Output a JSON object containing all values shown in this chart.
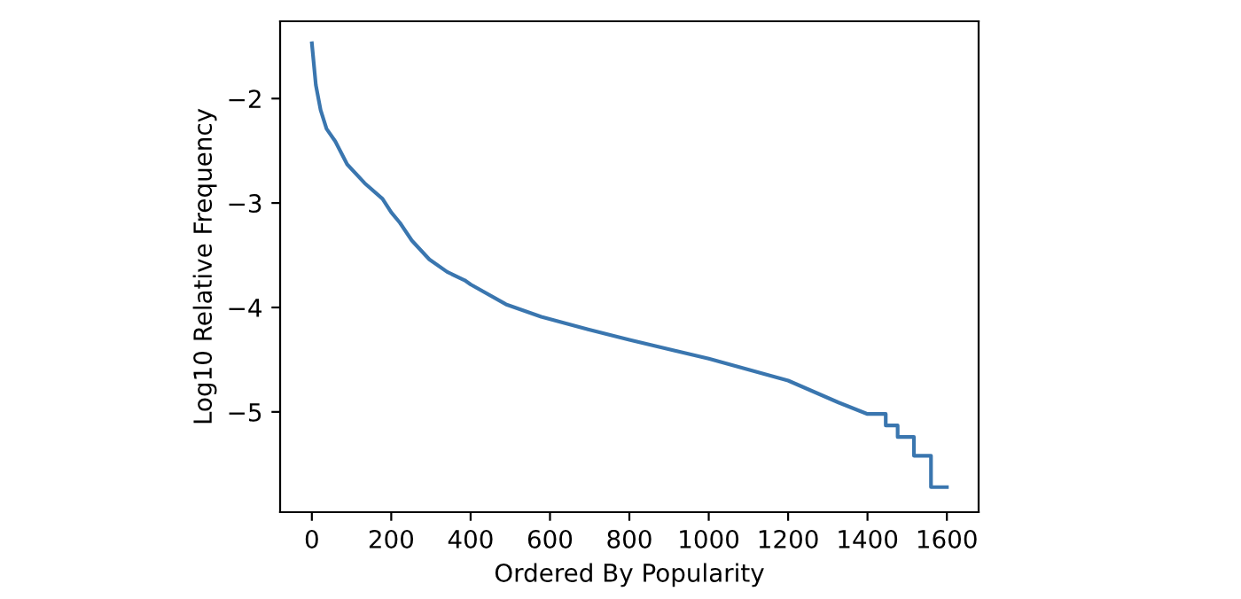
{
  "chart_data": {
    "type": "line",
    "xlabel": "Ordered By Popularity",
    "ylabel": "Log10 Relative Frequency",
    "x": [
      0,
      10,
      22,
      37,
      59,
      89,
      133,
      178,
      200,
      222,
      252,
      296,
      341,
      385,
      400,
      489,
      578,
      696,
      800,
      1000,
      1200,
      1327,
      1400,
      1446,
      1446,
      1476,
      1476,
      1517,
      1517,
      1560,
      1560,
      1600
    ],
    "series": [
      {
        "color": "#3a76af",
        "values": [
          -1.47,
          -1.87,
          -2.11,
          -2.29,
          -2.41,
          -2.63,
          -2.81,
          -2.96,
          -3.09,
          -3.19,
          -3.36,
          -3.54,
          -3.66,
          -3.74,
          -3.78,
          -3.97,
          -4.09,
          -4.21,
          -4.31,
          -4.49,
          -4.7,
          -4.91,
          -5.02,
          -5.02,
          -5.13,
          -5.13,
          -5.24,
          -5.24,
          -5.42,
          -5.42,
          -5.72,
          -5.72
        ]
      }
    ],
    "xlim": [
      -80,
      1680
    ],
    "ylim": [
      -5.96,
      -1.26
    ],
    "xticks": [
      0,
      200,
      400,
      600,
      800,
      1000,
      1200,
      1400,
      1600
    ],
    "yticks": [
      -2,
      -3,
      -4,
      -5
    ],
    "grid": false,
    "legend": false
  }
}
